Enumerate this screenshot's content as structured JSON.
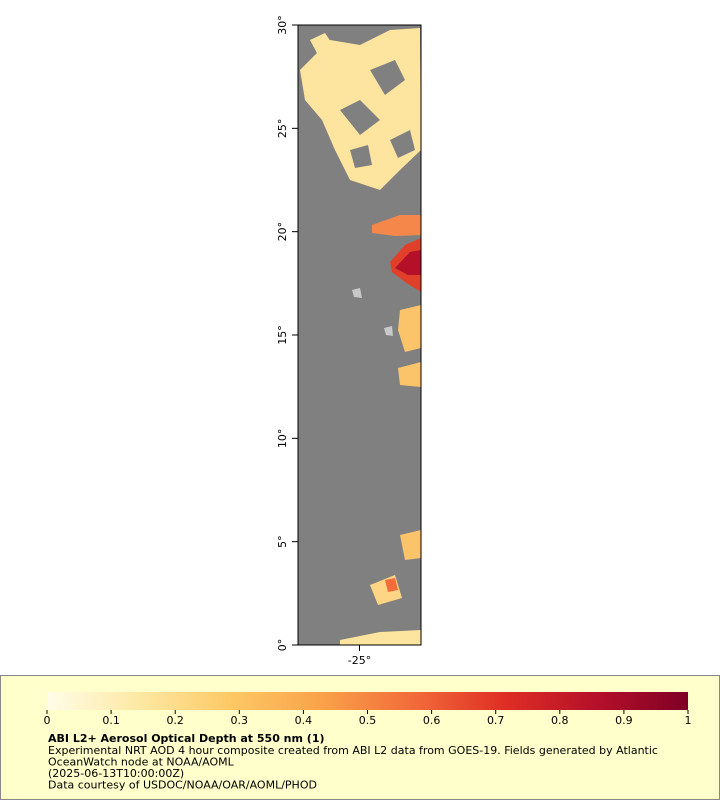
{
  "map": {
    "ylim": [
      0,
      30
    ],
    "yticks": [
      {
        "value": 0,
        "label": "0°"
      },
      {
        "value": 5,
        "label": "5°"
      },
      {
        "value": 10,
        "label": "10°"
      },
      {
        "value": 15,
        "label": "15°"
      },
      {
        "value": 20,
        "label": "20°"
      },
      {
        "value": 25,
        "label": "25°"
      },
      {
        "value": 30,
        "label": "30°"
      }
    ],
    "xlim": [
      -28,
      -22
    ],
    "xticks": [
      {
        "value": -25,
        "label": "-25°"
      }
    ]
  },
  "colorbar": {
    "range": [
      0,
      1
    ],
    "ticks": [
      0,
      0.1,
      0.2,
      0.3,
      0.4,
      0.5,
      0.6,
      0.7,
      0.8,
      0.9,
      1
    ],
    "colors": [
      "#fffde8",
      "#fde9a4",
      "#fdc965",
      "#f9a249",
      "#f26b3a",
      "#df2e24",
      "#b5102a",
      "#7f0025"
    ]
  },
  "legend": {
    "title": "ABI L2+ Aerosol Optical Depth at 550 nm (1)",
    "lines": [
      "Experimental NRT AOD 4 hour composite created from ABI L2 data from GOES-19. Fields generated by Atlantic",
      "OceanWatch node at NOAA/AOML",
      "(2025-06-13T10:00:00Z)",
      "Data courtesy of USDOC/NOAA/OAR/AOML/PHOD"
    ]
  }
}
